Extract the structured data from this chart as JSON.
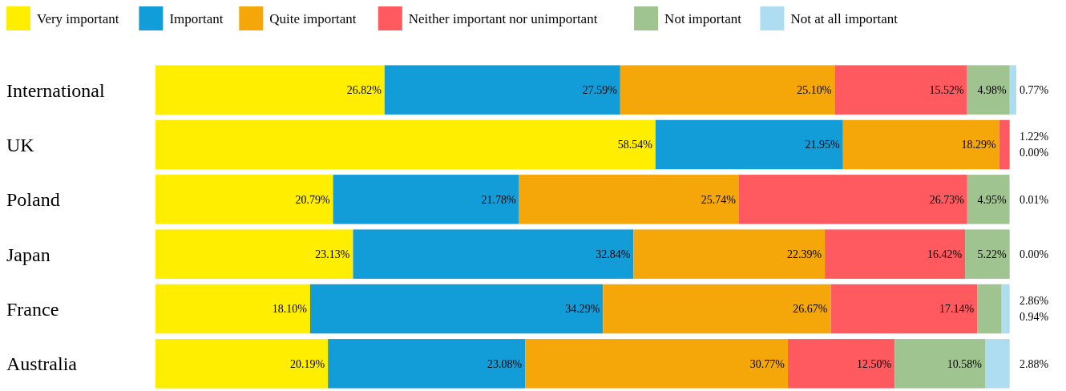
{
  "chart_data": {
    "type": "bar",
    "orientation": "horizontal",
    "stacked": true,
    "categories": [
      "International",
      "UK",
      "Poland",
      "Japan",
      "France",
      "Australia"
    ],
    "tick_labels": "y",
    "legend": "top",
    "series": [
      {
        "name": "Very important",
        "color": "#ffee00",
        "values": [
          26.82,
          58.54,
          20.79,
          23.13,
          18.1,
          20.19
        ],
        "value_labels": [
          "26.82%",
          "58.54%",
          "20.79%",
          "23.13%",
          "18.10%",
          "20.19%"
        ]
      },
      {
        "name": "Important",
        "color": "#129dd9",
        "values": [
          27.59,
          21.95,
          21.78,
          32.84,
          34.29,
          23.08
        ],
        "value_labels": [
          "27.59%",
          "21.95%",
          "21.78%",
          "32.84%",
          "34.29%",
          "23.08%"
        ]
      },
      {
        "name": "Quite important",
        "color": "#f5a70a",
        "values": [
          25.1,
          18.29,
          25.74,
          22.39,
          26.67,
          30.77
        ],
        "value_labels": [
          "25.10%",
          "18.29%",
          "25.74%",
          "22.39%",
          "26.67%",
          "30.77%"
        ]
      },
      {
        "name": "Neither important nor unimportant",
        "color": "#ff5a5f",
        "values": [
          15.52,
          1.22,
          26.73,
          16.42,
          17.14,
          12.5
        ],
        "value_labels": [
          "15.52%",
          "1.22%",
          "26.73%",
          "16.42%",
          "17.14%",
          "12.50%"
        ]
      },
      {
        "name": "Not important",
        "color": "#a0c490",
        "values": [
          4.98,
          null,
          4.95,
          5.22,
          2.86,
          10.58
        ],
        "value_labels": [
          "4.98%",
          null,
          "4.95%",
          "5.22%",
          "2.86%",
          "10.58%"
        ]
      },
      {
        "name": "Not at all important",
        "color": "#aedcf0",
        "values": [
          0.77,
          0.0,
          0.01,
          0.0,
          0.94,
          2.88
        ],
        "value_labels": [
          "0.77%",
          "0.00%",
          "0.01%",
          "0.00%",
          "0.94%",
          "2.88%"
        ]
      }
    ]
  }
}
